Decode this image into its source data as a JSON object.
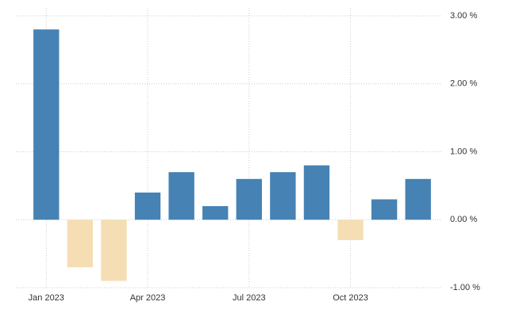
{
  "chart_data": {
    "type": "bar",
    "categories": [
      "Jan 2023",
      null,
      null,
      "Apr 2023",
      null,
      null,
      "Jul 2023",
      null,
      null,
      "Oct 2023",
      null,
      null
    ],
    "values": [
      2.8,
      -0.7,
      -0.9,
      0.4,
      0.7,
      0.2,
      0.6,
      0.7,
      0.8,
      -0.3,
      0.3,
      0.6
    ],
    "color": "#4682b4",
    "negative_color": "#f5deb3",
    "ylim": [
      -1,
      3
    ],
    "yticks": [
      {
        "value": -1,
        "label": "-1.00 %"
      },
      {
        "value": 0,
        "label": "0.00 %"
      },
      {
        "value": 1,
        "label": "1.00 %"
      },
      {
        "value": 2,
        "label": "2.00 %"
      },
      {
        "value": 3,
        "label": "3.00 %"
      }
    ],
    "grid": true
  }
}
